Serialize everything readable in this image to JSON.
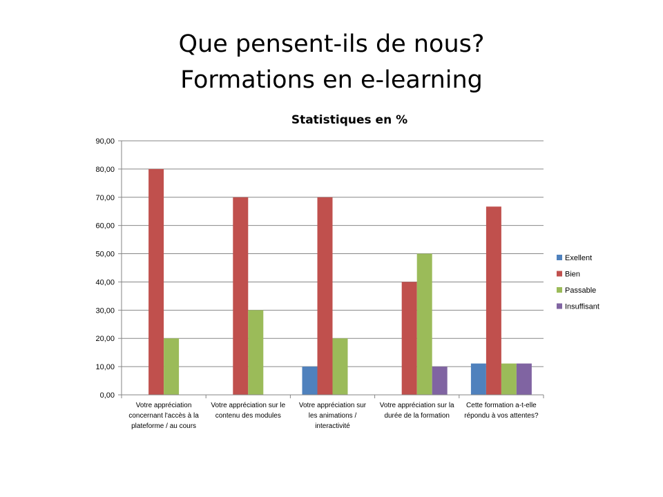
{
  "slide": {
    "title_line1": "Que pensent-ils de nous?",
    "title_line2": "Formations en e-learning"
  },
  "chart_data": {
    "type": "bar",
    "title": "Statistiques en %",
    "ylim": [
      0,
      90
    ],
    "yticks": [
      "0,00",
      "10,00",
      "20,00",
      "30,00",
      "40,00",
      "50,00",
      "60,00",
      "70,00",
      "80,00",
      "90,00"
    ],
    "ytick_values": [
      0,
      10,
      20,
      30,
      40,
      50,
      60,
      70,
      80,
      90
    ],
    "grid": true,
    "legend_position": "right",
    "categories": [
      [
        "Votre appréciation",
        "concernant l'accès à la",
        "plateforme / au cours"
      ],
      [
        "Votre appréciation sur le",
        "contenu des modules"
      ],
      [
        "Votre appréciation sur",
        "les animations /",
        "interactivité"
      ],
      [
        "Votre appréciation sur la",
        "durée de la formation"
      ],
      [
        "Cette formation a-t-elle",
        "répondu à vos attentes?"
      ]
    ],
    "series": [
      {
        "name": "Exellent",
        "color": "#4f81bd",
        "values": [
          0,
          0,
          10,
          0,
          11.1
        ]
      },
      {
        "name": "Bien",
        "color": "#c0504d",
        "values": [
          80,
          70,
          70,
          40,
          66.7
        ]
      },
      {
        "name": "Passable",
        "color": "#9bbb59",
        "values": [
          20,
          30,
          20,
          50,
          11.1
        ]
      },
      {
        "name": "Insuffisant",
        "color": "#8064a2",
        "values": [
          0,
          0,
          0,
          10,
          11.1
        ]
      }
    ]
  }
}
